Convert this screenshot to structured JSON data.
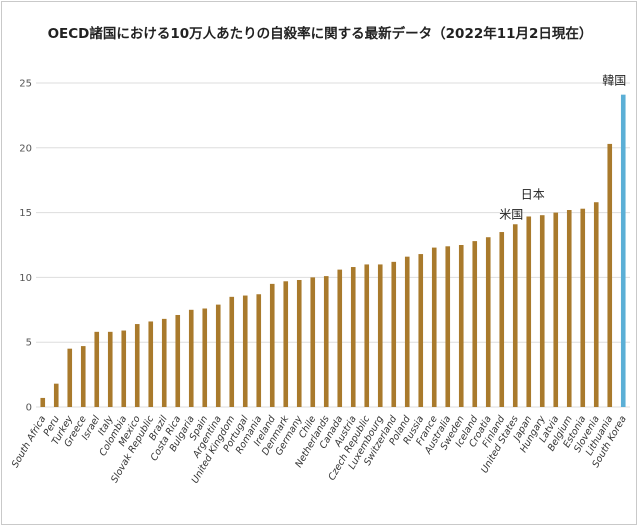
{
  "chart_data": {
    "type": "bar",
    "title": "OECD諸国における10万人あたりの自殺率に関する最新データ（2022年11月2日現在）",
    "xlabel": "",
    "ylabel": "",
    "ylim": [
      0,
      25
    ],
    "yticks": [
      0,
      5,
      10,
      15,
      20,
      25
    ],
    "grid": true,
    "categories": [
      "South Africa",
      "Peru",
      "Turkey",
      "Greece",
      "Israel",
      "Italy",
      "Colombia",
      "Mexico",
      "Slovak Republic",
      "Brazil",
      "Costa Rica",
      "Bulgaria",
      "Spain",
      "Argentina",
      "United Kingdom",
      "Portugal",
      "Romania",
      "Ireland",
      "Denmark",
      "Germany",
      "Chile",
      "Netherlands",
      "Canada",
      "Austria",
      "Czech Republic",
      "Luxembourg",
      "Switzerland",
      "Poland",
      "Russia",
      "France",
      "Australia",
      "Sweden",
      "Iceland",
      "Croatia",
      "Finland",
      "United States",
      "Japan",
      "Hungary",
      "Latvia",
      "Belgium",
      "Estonia",
      "Slovenia",
      "Lithuania",
      "South Korea"
    ],
    "values": [
      0.7,
      1.8,
      4.5,
      4.7,
      5.8,
      5.8,
      5.9,
      6.4,
      6.6,
      6.8,
      7.1,
      7.5,
      7.6,
      7.9,
      8.5,
      8.6,
      8.7,
      9.5,
      9.7,
      9.8,
      10.0,
      10.1,
      10.6,
      10.8,
      11.0,
      11.0,
      11.2,
      11.6,
      11.8,
      12.3,
      12.4,
      12.5,
      12.8,
      13.1,
      13.5,
      14.1,
      14.7,
      14.8,
      15.0,
      15.2,
      15.3,
      15.8,
      20.3,
      24.1
    ],
    "colors": {
      "bar": "#a97a2c",
      "highlight": "#5bafd6",
      "grid": "#dddddd"
    },
    "highlight_index": 43,
    "annotations": [
      {
        "text": "米国",
        "index": 35
      },
      {
        "text": "日本",
        "index": 36
      },
      {
        "text": "韓国",
        "index": 43
      }
    ]
  }
}
